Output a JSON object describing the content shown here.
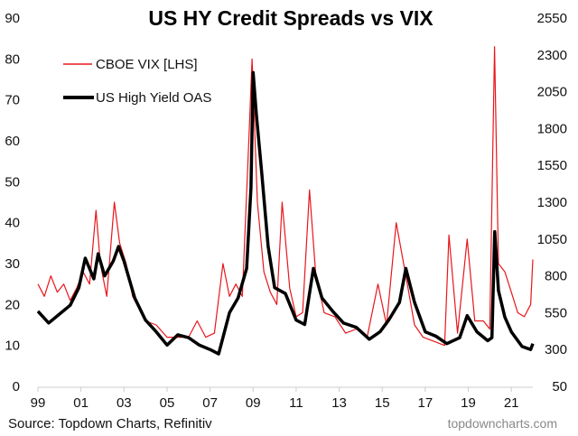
{
  "chart_data": {
    "type": "line",
    "title": "US HY Credit Spreads vs VIX",
    "source": "Source: Topdown Charts, Refinitiv",
    "credit": "topdowncharts.com",
    "legend_placement": "top-left",
    "grid": false,
    "x_range": [
      1999,
      2022
    ],
    "x_ticks": [
      {
        "value": 1999,
        "label": "99"
      },
      {
        "value": 2001,
        "label": "01"
      },
      {
        "value": 2003,
        "label": "03"
      },
      {
        "value": 2005,
        "label": "05"
      },
      {
        "value": 2007,
        "label": "07"
      },
      {
        "value": 2009,
        "label": "09"
      },
      {
        "value": 2011,
        "label": "11"
      },
      {
        "value": 2013,
        "label": "13"
      },
      {
        "value": 2015,
        "label": "15"
      },
      {
        "value": 2017,
        "label": "17"
      },
      {
        "value": 2019,
        "label": "19"
      },
      {
        "value": 2021,
        "label": "21"
      }
    ],
    "y_left": {
      "range": [
        0,
        90
      ],
      "ticks": [
        "0",
        "10",
        "20",
        "30",
        "40",
        "50",
        "60",
        "70",
        "80",
        "90"
      ]
    },
    "y_right": {
      "range": [
        50,
        2550
      ],
      "ticks": [
        "50",
        "300",
        "550",
        "800",
        "1050",
        "1300",
        "1550",
        "1800",
        "2050",
        "2300",
        "2550"
      ]
    },
    "series": [
      {
        "name": "CBOE VIX [LHS]",
        "axis": "left",
        "color": "#e8161b",
        "x": [
          1999.0,
          1999.3,
          1999.6,
          1999.9,
          2000.2,
          2000.5,
          2000.8,
          2001.1,
          2001.4,
          2001.7,
          2001.9,
          2002.2,
          2002.55,
          2002.8,
          2003.1,
          2003.4,
          2003.7,
          2004.0,
          2004.5,
          2005.0,
          2005.5,
          2006.0,
          2006.4,
          2006.8,
          2007.2,
          2007.6,
          2007.9,
          2008.2,
          2008.5,
          2008.8,
          2008.95,
          2009.2,
          2009.5,
          2009.8,
          2010.1,
          2010.35,
          2010.7,
          2011.0,
          2011.3,
          2011.62,
          2011.9,
          2012.3,
          2012.8,
          2013.3,
          2013.8,
          2014.3,
          2014.8,
          2015.2,
          2015.65,
          2016.1,
          2016.5,
          2016.9,
          2017.4,
          2017.9,
          2018.1,
          2018.5,
          2018.95,
          2019.3,
          2019.7,
          2020.0,
          2020.22,
          2020.4,
          2020.7,
          2021.0,
          2021.3,
          2021.6,
          2021.9,
          2022.0
        ],
        "y": [
          25,
          22,
          27,
          23,
          25,
          21,
          24,
          28,
          25,
          43,
          30,
          22,
          45,
          35,
          30,
          22,
          19,
          16,
          15,
          12,
          12,
          12,
          16,
          12,
          13,
          30,
          22,
          25,
          22,
          60,
          80,
          45,
          28,
          23,
          20,
          45,
          24,
          17,
          18,
          48,
          28,
          18,
          17,
          13,
          14,
          12,
          25,
          15,
          40,
          27,
          15,
          12,
          11,
          10,
          37,
          13,
          36,
          16,
          16,
          14,
          83,
          30,
          28,
          23,
          18,
          17,
          20,
          31
        ]
      },
      {
        "name": "US High Yield OAS",
        "axis": "right",
        "color": "#000000",
        "x": [
          1999.0,
          1999.5,
          2000.0,
          2000.5,
          2000.9,
          2001.2,
          2001.6,
          2001.8,
          2002.1,
          2002.5,
          2002.75,
          2003.0,
          2003.5,
          2004.0,
          2004.5,
          2005.0,
          2005.5,
          2006.0,
          2006.5,
          2007.0,
          2007.4,
          2007.9,
          2008.3,
          2008.7,
          2008.9,
          2009.0,
          2009.15,
          2009.4,
          2009.7,
          2010.0,
          2010.5,
          2011.0,
          2011.4,
          2011.8,
          2012.2,
          2012.7,
          2013.2,
          2013.8,
          2014.4,
          2014.9,
          2015.3,
          2015.8,
          2016.1,
          2016.5,
          2017.0,
          2017.5,
          2018.0,
          2018.6,
          2018.95,
          2019.4,
          2019.9,
          2020.1,
          2020.23,
          2020.4,
          2020.7,
          2021.0,
          2021.5,
          2021.9,
          2022.0
        ],
        "y": [
          560,
          480,
          540,
          600,
          720,
          920,
          780,
          950,
          800,
          900,
          1000,
          900,
          650,
          500,
          420,
          330,
          400,
          380,
          330,
          300,
          270,
          550,
          650,
          850,
          1400,
          2180,
          1900,
          1500,
          1000,
          720,
          680,
          500,
          470,
          850,
          650,
          560,
          480,
          450,
          370,
          420,
          500,
          620,
          850,
          620,
          420,
          390,
          340,
          380,
          530,
          420,
          360,
          380,
          1100,
          700,
          520,
          420,
          320,
          300,
          340
        ]
      }
    ]
  }
}
